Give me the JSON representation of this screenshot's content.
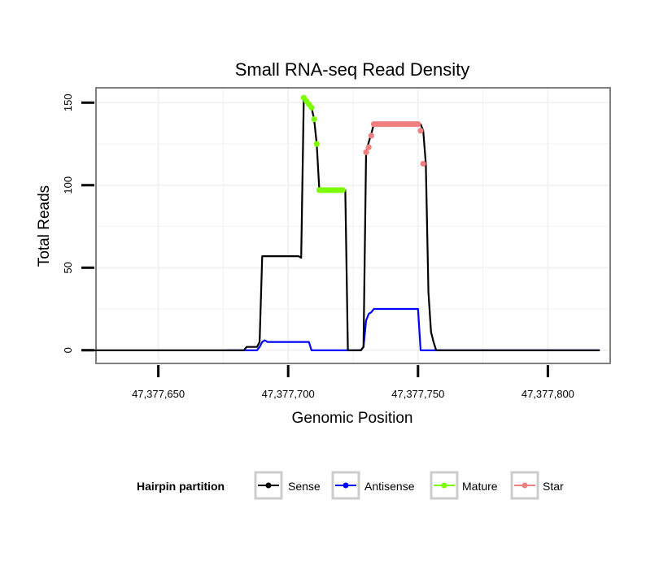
{
  "chart_data": {
    "type": "line",
    "title": "Small RNA-seq Read Density",
    "xlabel": "Genomic Position",
    "ylabel": "Total Reads",
    "xlim": [
      47377626,
      47377824
    ],
    "ylim": [
      -8,
      159
    ],
    "x_ticks": [
      47377650,
      47377700,
      47377750,
      47377800
    ],
    "x_tick_labels": [
      "47,377,650",
      "47,377,700",
      "47,377,750",
      "47,377,800"
    ],
    "y_ticks": [
      0,
      50,
      100,
      150
    ],
    "y_tick_labels": [
      "0",
      "50",
      "100",
      "150"
    ],
    "grid": true,
    "legend": {
      "title": "Hairpin partition",
      "position": "bottom",
      "entries": [
        {
          "label": "Sense",
          "color": "#000000"
        },
        {
          "label": "Antisense",
          "color": "#0000ff"
        },
        {
          "label": "Mature",
          "color": "#7cfc00"
        },
        {
          "label": "Star",
          "color": "#f08080"
        }
      ]
    },
    "series": [
      {
        "name": "Sense",
        "color": "#000000",
        "style": "line",
        "x": [
          47377625,
          47377683,
          47377684,
          47377688,
          47377689,
          47377690,
          47377704,
          47377705,
          47377706,
          47377707,
          47377708,
          47377709,
          47377710,
          47377711,
          47377712,
          47377721,
          47377722,
          47377723,
          47377728,
          47377729,
          47377730,
          47377731,
          47377732,
          47377733,
          47377734,
          47377749,
          47377750,
          47377751,
          47377752,
          47377753,
          47377754,
          47377755,
          47377756,
          47377757,
          47377820
        ],
        "y": [
          0,
          0,
          2,
          2,
          5,
          57,
          57,
          56,
          153,
          151,
          149,
          147,
          140,
          125,
          97,
          97,
          97,
          0,
          0,
          2,
          120,
          126,
          131,
          137,
          137,
          137,
          137,
          137,
          133,
          113,
          35,
          11,
          5,
          0,
          0
        ]
      },
      {
        "name": "Antisense",
        "color": "#0000ff",
        "style": "line",
        "x": [
          47377676,
          47377688,
          47377689,
          47377690,
          47377691,
          47377692,
          47377707,
          47377708,
          47377709,
          47377728,
          47377729,
          47377730,
          47377731,
          47377732,
          47377733,
          47377750,
          47377751,
          47377820
        ],
        "y": [
          0,
          0,
          2,
          5,
          6,
          5,
          5,
          5,
          0,
          0,
          2,
          18,
          22,
          23,
          25,
          25,
          0,
          0
        ]
      },
      {
        "name": "Mature",
        "color": "#7cfc00",
        "style": "points",
        "x": [
          47377706,
          47377707,
          47377708,
          47377709,
          47377710,
          47377711,
          47377712,
          47377713,
          47377714,
          47377715,
          47377716,
          47377717,
          47377718,
          47377719,
          47377720,
          47377721
        ],
        "y": [
          153,
          151,
          149,
          147,
          140,
          125,
          97,
          97,
          97,
          97,
          97,
          97,
          97,
          97,
          97,
          97
        ]
      },
      {
        "name": "Star",
        "color": "#f08080",
        "style": "points",
        "x": [
          47377730,
          47377731,
          47377732,
          47377733,
          47377734,
          47377735,
          47377736,
          47377737,
          47377738,
          47377739,
          47377740,
          47377741,
          47377742,
          47377743,
          47377744,
          47377745,
          47377746,
          47377747,
          47377748,
          47377749,
          47377750,
          47377751,
          47377752
        ],
        "y": [
          120,
          123,
          130,
          137,
          137,
          137,
          137,
          137,
          137,
          137,
          137,
          137,
          137,
          137,
          137,
          137,
          137,
          137,
          137,
          137,
          137,
          133,
          113
        ]
      }
    ]
  }
}
